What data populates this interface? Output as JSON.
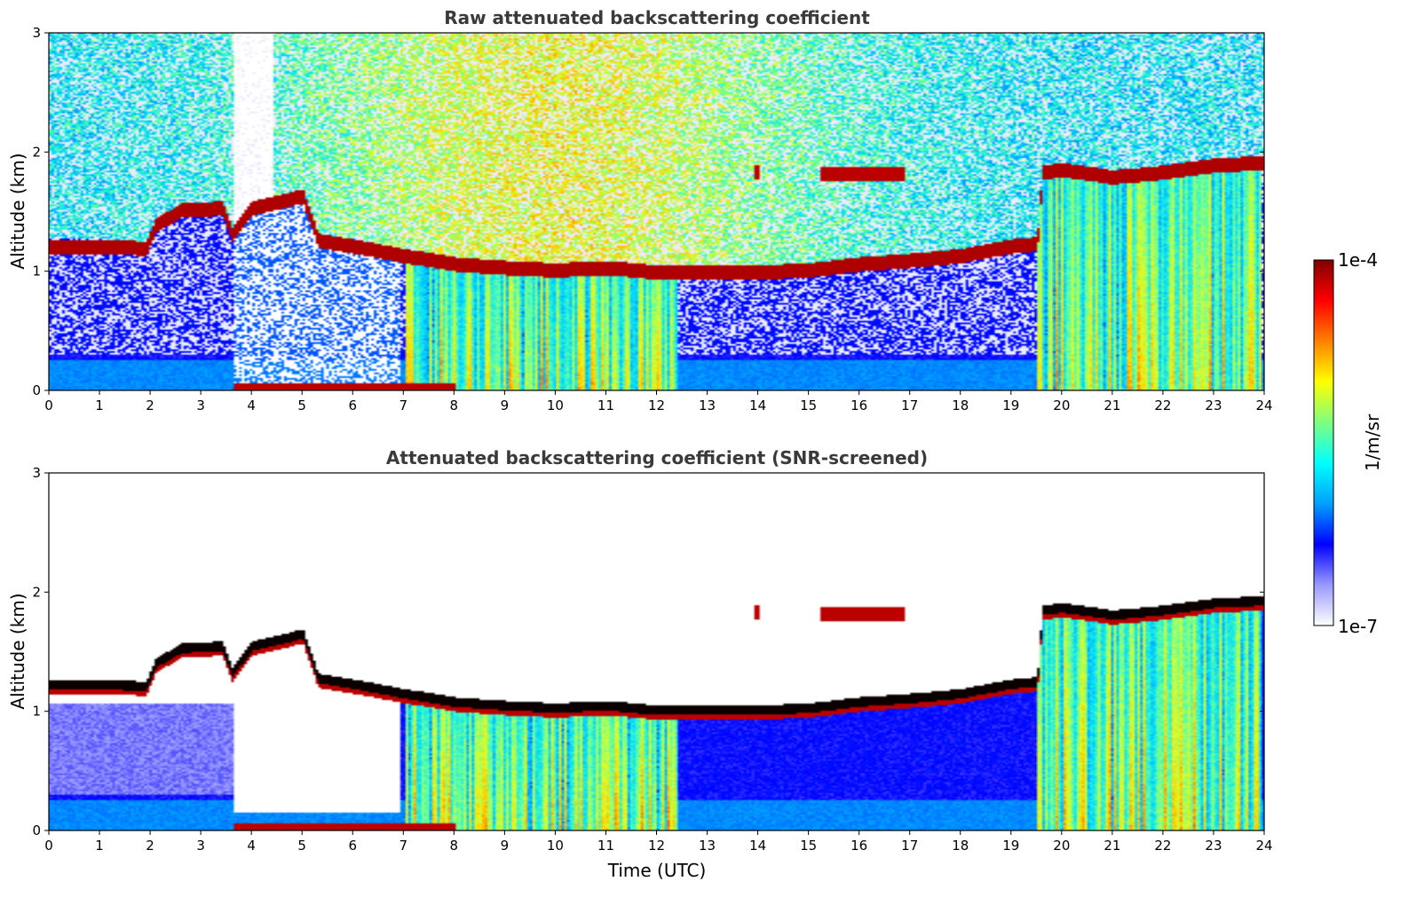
{
  "chart_data": [
    {
      "type": "heatmap",
      "title": "Raw attenuated backscattering coefficient",
      "xlabel": "",
      "ylabel": "Altitude (km)",
      "xlim": [
        0,
        24
      ],
      "ylim": [
        0,
        3
      ],
      "xticks": [
        "0",
        "1",
        "2",
        "3",
        "4",
        "5",
        "6",
        "7",
        "8",
        "9",
        "10",
        "11",
        "12",
        "13",
        "14",
        "15",
        "16",
        "17",
        "18",
        "19",
        "20",
        "21",
        "22",
        "23",
        "24"
      ],
      "yticks": [
        "0",
        "1",
        "2",
        "3"
      ],
      "screened": false,
      "cloud_base_km": [
        [
          0,
          1.2
        ],
        [
          1,
          1.2
        ],
        [
          1.9,
          1.18
        ],
        [
          2.1,
          1.38
        ],
        [
          2.6,
          1.5
        ],
        [
          3.4,
          1.52
        ],
        [
          3.6,
          1.3
        ],
        [
          4.0,
          1.52
        ],
        [
          5.0,
          1.62
        ],
        [
          5.3,
          1.25
        ],
        [
          6.0,
          1.2
        ],
        [
          7.0,
          1.12
        ],
        [
          8.0,
          1.05
        ],
        [
          9.0,
          1.02
        ],
        [
          10.0,
          1.0
        ],
        [
          11.0,
          1.02
        ],
        [
          12.0,
          0.98
        ],
        [
          13.0,
          0.98
        ],
        [
          14.0,
          0.98
        ],
        [
          15.0,
          1.0
        ],
        [
          16.0,
          1.05
        ],
        [
          17.0,
          1.08
        ],
        [
          18.0,
          1.12
        ],
        [
          19.0,
          1.2
        ],
        [
          19.5,
          1.22
        ],
        [
          19.6,
          1.82
        ],
        [
          20.0,
          1.84
        ],
        [
          21.0,
          1.78
        ],
        [
          22.0,
          1.82
        ],
        [
          23.0,
          1.88
        ],
        [
          24.0,
          1.9
        ]
      ],
      "upper_layers_km": [
        [
          15.2,
          16.9,
          1.8
        ],
        [
          13.9,
          14.0,
          1.82
        ]
      ],
      "rain_shafts_utc": [
        [
          7.0,
          12.4
        ],
        [
          19.5,
          23.9
        ]
      ],
      "low_aerosol_band": [
        [
          0,
          8.0,
          0.25
        ]
      ]
    },
    {
      "type": "heatmap",
      "title": "Attenuated backscattering coefficient (SNR-screened)",
      "xlabel": "Time (UTC)",
      "ylabel": "Altitude (km)",
      "xlim": [
        0,
        24
      ],
      "ylim": [
        0,
        3
      ],
      "xticks": [
        "0",
        "1",
        "2",
        "3",
        "4",
        "5",
        "6",
        "7",
        "8",
        "9",
        "10",
        "11",
        "12",
        "13",
        "14",
        "15",
        "16",
        "17",
        "18",
        "19",
        "20",
        "21",
        "22",
        "23",
        "24"
      ],
      "yticks": [
        "0",
        "1",
        "2",
        "3"
      ],
      "screened": true,
      "cloud_base_km": [
        [
          0,
          1.2
        ],
        [
          1,
          1.2
        ],
        [
          1.9,
          1.18
        ],
        [
          2.1,
          1.38
        ],
        [
          2.6,
          1.5
        ],
        [
          3.4,
          1.52
        ],
        [
          3.6,
          1.3
        ],
        [
          4.0,
          1.52
        ],
        [
          5.0,
          1.62
        ],
        [
          5.3,
          1.25
        ],
        [
          6.0,
          1.2
        ],
        [
          7.0,
          1.12
        ],
        [
          8.0,
          1.05
        ],
        [
          9.0,
          1.02
        ],
        [
          10.0,
          1.0
        ],
        [
          11.0,
          1.02
        ],
        [
          12.0,
          0.98
        ],
        [
          13.0,
          0.98
        ],
        [
          14.0,
          0.98
        ],
        [
          15.0,
          1.0
        ],
        [
          16.0,
          1.05
        ],
        [
          17.0,
          1.08
        ],
        [
          18.0,
          1.12
        ],
        [
          19.0,
          1.2
        ],
        [
          19.5,
          1.22
        ],
        [
          19.6,
          1.82
        ],
        [
          20.0,
          1.84
        ],
        [
          21.0,
          1.78
        ],
        [
          22.0,
          1.82
        ],
        [
          23.0,
          1.88
        ],
        [
          24.0,
          1.9
        ]
      ],
      "upper_layers_km": [
        [
          15.2,
          16.9,
          1.8
        ],
        [
          13.9,
          14.0,
          1.82
        ]
      ],
      "rain_shafts_utc": [
        [
          7.0,
          12.4
        ],
        [
          19.5,
          23.9
        ]
      ],
      "low_aerosol_band": [
        [
          0,
          8.0,
          0.25
        ]
      ]
    }
  ],
  "colorbar": {
    "label": "1/m/sr",
    "max_label": "1e-4",
    "min_label": "1e-7",
    "scale": "log",
    "colormap": "jet",
    "colors": [
      "#ffffff",
      "#9999ff",
      "#0000ff",
      "#00a0ff",
      "#00ffff",
      "#7fff7f",
      "#ffff00",
      "#ff8000",
      "#ff0000",
      "#800000"
    ]
  }
}
